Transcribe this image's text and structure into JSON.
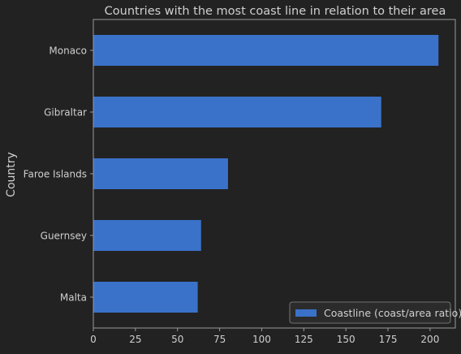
{
  "chart_data": {
    "type": "bar",
    "orientation": "horizontal",
    "title": "Countries with the most coast line in relation to their area",
    "ylabel": "Country",
    "xlabel": "",
    "categories": [
      "Monaco",
      "Gibraltar",
      "Faroe Islands",
      "Guernsey",
      "Malta"
    ],
    "series": [
      {
        "name": "Coastline (coast/area ratio)",
        "values": [
          205,
          171,
          80,
          64,
          62
        ]
      }
    ],
    "xlim": [
      0,
      215
    ],
    "xticks": [
      "0",
      "25",
      "50",
      "75",
      "100",
      "125",
      "150",
      "175",
      "200"
    ],
    "legend": "bottom-right",
    "grid": false,
    "colors": {
      "bar": "#3a72c9",
      "background": "#222222",
      "frame": "#9a9a9a",
      "text": "#cfcfcf"
    }
  }
}
